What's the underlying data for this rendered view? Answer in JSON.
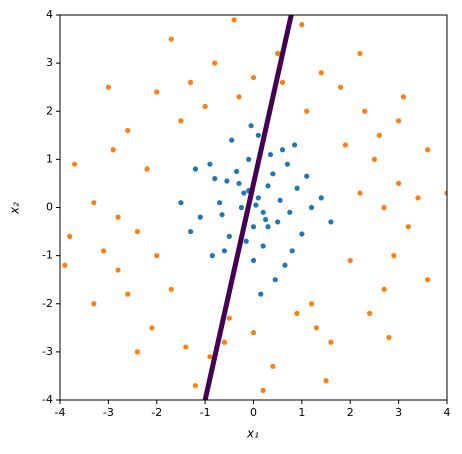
{
  "chart_data": {
    "type": "scatter",
    "x_label": "x₁",
    "y_label": "x₂",
    "xlim": [
      -4,
      4
    ],
    "ylim": [
      -4,
      4
    ],
    "xticks": [
      -4,
      -3,
      -2,
      -1,
      0,
      1,
      2,
      3,
      4
    ],
    "yticks": [
      -4,
      -3,
      -2,
      -1,
      0,
      1,
      2,
      3,
      4
    ],
    "series": [
      {
        "color": "#1f77b4",
        "x": [
          0.1,
          -0.3,
          0.5,
          -0.7,
          0.2,
          0.9,
          -0.1,
          -1.1,
          0.4,
          -0.5,
          1.2,
          0.0,
          -0.2,
          0.6,
          -0.8,
          0.3,
          0.8,
          -0.4,
          -0.9,
          0.1,
          1.4,
          -1.3,
          0.2,
          -0.6,
          0.7,
          -0.1,
          0.45,
          -0.35,
          1.0,
          -1.5,
          0.05,
          0.25,
          -0.15,
          0.55,
          -0.65,
          1.6,
          -0.05,
          0.35,
          -1.2,
          0.85,
          -0.45,
          0.15,
          0.65,
          -0.85,
          1.1,
          -0.25,
          0.0,
          0.3,
          -0.55,
          0.75
        ],
        "values": [
          0.2,
          0.5,
          -0.3,
          0.1,
          -0.8,
          0.4,
          1.0,
          -0.2,
          0.7,
          -0.6,
          0.0,
          -1.1,
          0.3,
          1.2,
          0.6,
          -0.4,
          -0.9,
          -1.3,
          0.9,
          1.5,
          0.2,
          -0.5,
          -0.1,
          -0.9,
          0.9,
          0.35,
          -1.5,
          0.75,
          -0.55,
          0.1,
          0.05,
          -0.25,
          -0.7,
          0.15,
          -0.15,
          -0.3,
          1.7,
          1.1,
          0.8,
          1.3,
          1.4,
          -1.8,
          -1.2,
          -1.0,
          0.65,
          0.0,
          -0.4,
          0.45,
          0.55,
          -0.1
        ]
      },
      {
        "color": "#ff7f0e",
        "x": [
          3.0,
          2.6,
          1.8,
          0.5,
          -0.8,
          -2.0,
          -2.9,
          -3.3,
          -2.8,
          -2.1,
          -0.9,
          0.4,
          1.6,
          2.7,
          3.2,
          2.2,
          1.9,
          1.1,
          -0.3,
          -1.5,
          -2.2,
          -2.4,
          -1.7,
          -0.5,
          0.9,
          2.0,
          3.6,
          3.1,
          2.2,
          1.0,
          -0.4,
          -1.7,
          -3.0,
          -3.7,
          -3.8,
          -3.3,
          -2.4,
          -1.2,
          0.2,
          1.5,
          2.8,
          3.6,
          2.7,
          2.3,
          1.4,
          0.0,
          -1.3,
          -2.6,
          -2.8,
          -2.6,
          -1.4,
          0.0,
          1.3,
          2.4,
          2.9,
          4.0,
          3.4,
          -3.9,
          -1.0,
          1.2,
          2.5,
          -2.0,
          0.6,
          -0.6,
          3.0,
          -3.1
        ],
        "values": [
          0.5,
          1.5,
          2.5,
          3.2,
          3.0,
          2.4,
          1.2,
          0.1,
          -1.3,
          -2.5,
          -3.1,
          -3.3,
          -2.8,
          -1.7,
          -0.4,
          0.3,
          1.3,
          2.0,
          2.3,
          1.8,
          0.8,
          -0.5,
          -1.7,
          -2.3,
          -2.2,
          -1.1,
          1.2,
          2.3,
          3.2,
          3.8,
          3.9,
          3.5,
          2.5,
          0.9,
          -0.6,
          -2.0,
          -3.0,
          -3.7,
          -3.8,
          -3.6,
          -2.7,
          -1.5,
          0.0,
          2.0,
          2.8,
          2.7,
          2.6,
          1.6,
          -0.2,
          -1.8,
          -2.9,
          -2.6,
          -2.5,
          -2.2,
          -1.0,
          0.3,
          0.2,
          -1.2,
          2.1,
          -2.0,
          1.0,
          -1.0,
          2.6,
          -2.8,
          1.8,
          -0.9
        ]
      },
      {
        "type": "line",
        "color": "#440154",
        "x": [
          -1.0,
          0.78
        ],
        "values": [
          -4,
          4
        ]
      }
    ]
  }
}
